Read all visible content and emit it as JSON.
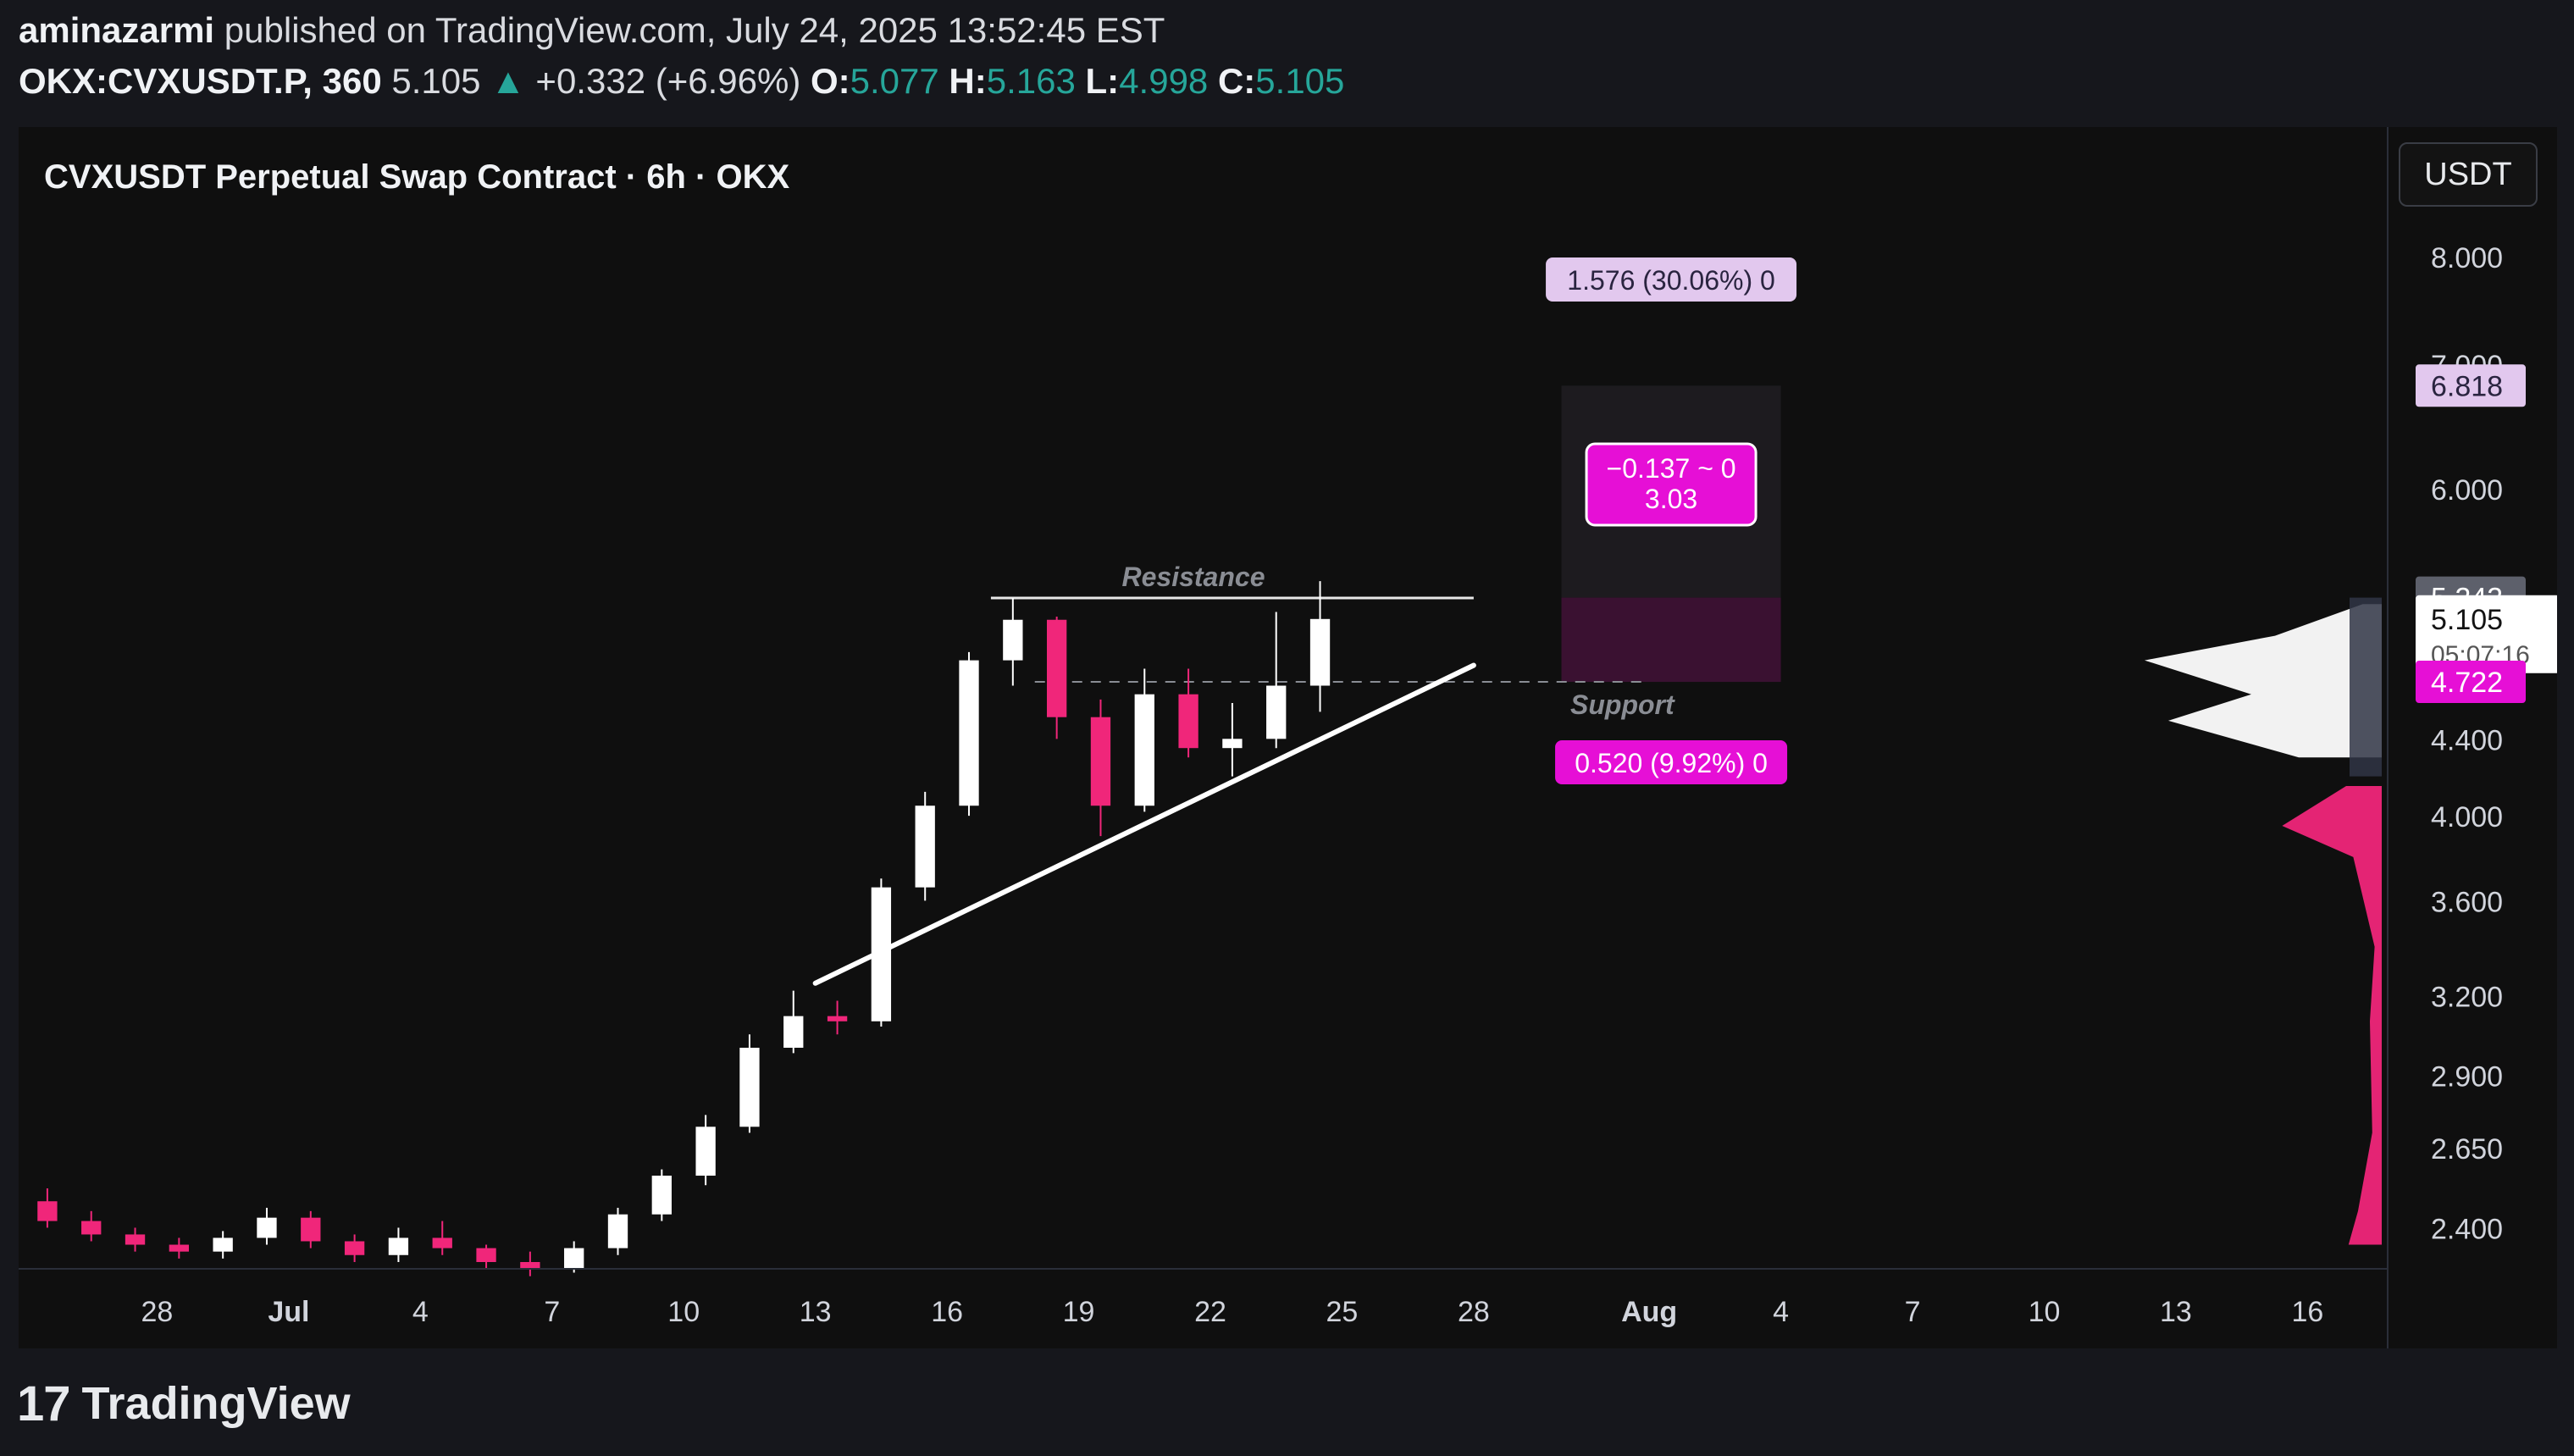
{
  "header": {
    "author": "aminazarmi",
    "published_text": "published on TradingView.com, July 24, 2025 13:52:45 EST",
    "symbol": "OKX:CVXUSDT.P, 360",
    "last": "5.105",
    "change_arrow": "▲",
    "change": "+0.332 (+6.96%)",
    "open_label": "O:",
    "open": "5.077",
    "high_label": "H:",
    "high": "5.163",
    "low_label": "L:",
    "low": "4.998",
    "close_label": "C:",
    "close": "5.105"
  },
  "currency_button": "USDT",
  "footer": {
    "logo": "17",
    "brand": "TradingView"
  },
  "colors": {
    "bull": "#ffffff",
    "bear": "#f0267a",
    "magenta": "#e60fd6",
    "lavender": "#e2c8ee",
    "grid_text": "#d1d4dc",
    "up_text": "#26a69a"
  },
  "chart_data": {
    "type": "candlestick",
    "title": "CVXUSDT Perpetual Swap Contract · 6h · OKX",
    "y_axis": {
      "scale": "log",
      "ticks": [
        "8.000",
        "7.000",
        "6.000",
        "4.400",
        "4.000",
        "3.600",
        "3.200",
        "2.900",
        "2.650",
        "2.400"
      ],
      "ylim": [
        2.3,
        8.3
      ]
    },
    "x_axis": {
      "ticks": [
        "28",
        "Jul",
        "4",
        "7",
        "10",
        "13",
        "16",
        "19",
        "22",
        "25",
        "28",
        "Aug",
        "4",
        "7",
        "10",
        "13",
        "16"
      ],
      "range": [
        "2025-06-25",
        "2025-08-18"
      ]
    },
    "price_labels": [
      {
        "text": "6.818",
        "value": 6.818,
        "style": "lavender"
      },
      {
        "text": "5.242",
        "value": 5.242,
        "style": "gray"
      },
      {
        "text": "5.105",
        "value": 5.105,
        "sub": "05:07:16",
        "style": "white"
      },
      {
        "text": "4.722",
        "value": 4.722,
        "style": "magenta"
      }
    ],
    "drawings": {
      "resistance_label": "Resistance",
      "resistance_price": 5.24,
      "support_label": "Support",
      "support_price": 4.722,
      "trendline": {
        "from": [
          "2025-07-13",
          3.25
        ],
        "to": [
          "2025-07-28",
          4.82
        ]
      }
    },
    "position_tool": {
      "target_label": "1.576 (30.06%) 0",
      "target_price": 6.818,
      "entry_price": 5.242,
      "stop_price": 4.722,
      "stop_label": "0.520 (9.92%) 0",
      "center_line1": "−0.137 ~ 0",
      "center_line2": "3.03",
      "from": "2025-07-30",
      "to": "2025-08-04"
    },
    "ohlc": [
      {
        "t": "2025-06-25",
        "o": 2.48,
        "h": 2.52,
        "l": 2.4,
        "c": 2.42
      },
      {
        "t": "2025-06-26",
        "o": 2.42,
        "h": 2.45,
        "l": 2.36,
        "c": 2.38
      },
      {
        "t": "2025-06-27",
        "o": 2.38,
        "h": 2.4,
        "l": 2.33,
        "c": 2.35
      },
      {
        "t": "2025-06-28",
        "o": 2.35,
        "h": 2.37,
        "l": 2.31,
        "c": 2.33
      },
      {
        "t": "2025-06-29",
        "o": 2.33,
        "h": 2.39,
        "l": 2.31,
        "c": 2.37
      },
      {
        "t": "2025-06-30",
        "o": 2.37,
        "h": 2.46,
        "l": 2.35,
        "c": 2.43
      },
      {
        "t": "2025-07-01",
        "o": 2.43,
        "h": 2.45,
        "l": 2.34,
        "c": 2.36
      },
      {
        "t": "2025-07-02",
        "o": 2.36,
        "h": 2.38,
        "l": 2.3,
        "c": 2.32
      },
      {
        "t": "2025-07-03",
        "o": 2.32,
        "h": 2.4,
        "l": 2.3,
        "c": 2.37
      },
      {
        "t": "2025-07-04",
        "o": 2.37,
        "h": 2.42,
        "l": 2.32,
        "c": 2.34
      },
      {
        "t": "2025-07-05",
        "o": 2.34,
        "h": 2.35,
        "l": 2.28,
        "c": 2.3
      },
      {
        "t": "2025-07-06",
        "o": 2.3,
        "h": 2.33,
        "l": 2.26,
        "c": 2.28
      },
      {
        "t": "2025-07-07",
        "o": 2.28,
        "h": 2.36,
        "l": 2.27,
        "c": 2.34
      },
      {
        "t": "2025-07-08",
        "o": 2.34,
        "h": 2.46,
        "l": 2.32,
        "c": 2.44
      },
      {
        "t": "2025-07-09",
        "o": 2.44,
        "h": 2.58,
        "l": 2.42,
        "c": 2.56
      },
      {
        "t": "2025-07-10",
        "o": 2.56,
        "h": 2.76,
        "l": 2.53,
        "c": 2.72
      },
      {
        "t": "2025-07-11",
        "o": 2.72,
        "h": 3.05,
        "l": 2.7,
        "c": 3.0
      },
      {
        "t": "2025-07-12",
        "o": 3.0,
        "h": 3.22,
        "l": 2.98,
        "c": 3.12
      },
      {
        "t": "2025-07-13",
        "o": 3.12,
        "h": 3.18,
        "l": 3.05,
        "c": 3.1
      },
      {
        "t": "2025-07-14",
        "o": 3.1,
        "h": 3.7,
        "l": 3.08,
        "c": 3.66
      },
      {
        "t": "2025-07-15",
        "o": 3.66,
        "h": 4.12,
        "l": 3.6,
        "c": 4.05
      },
      {
        "t": "2025-07-16",
        "o": 4.05,
        "h": 4.9,
        "l": 4.0,
        "c": 4.85
      },
      {
        "t": "2025-07-17",
        "o": 4.85,
        "h": 5.24,
        "l": 4.7,
        "c": 5.1
      },
      {
        "t": "2025-07-18",
        "o": 5.1,
        "h": 5.12,
        "l": 4.4,
        "c": 4.52
      },
      {
        "t": "2025-07-19",
        "o": 4.52,
        "h": 4.62,
        "l": 3.9,
        "c": 4.05
      },
      {
        "t": "2025-07-20",
        "o": 4.05,
        "h": 4.8,
        "l": 4.02,
        "c": 4.65
      },
      {
        "t": "2025-07-21",
        "o": 4.65,
        "h": 4.8,
        "l": 4.3,
        "c": 4.35
      },
      {
        "t": "2025-07-22",
        "o": 4.35,
        "h": 4.6,
        "l": 4.2,
        "c": 4.4
      },
      {
        "t": "2025-07-23",
        "o": 4.4,
        "h": 5.15,
        "l": 4.35,
        "c": 4.7
      },
      {
        "t": "2025-07-24",
        "o": 4.7,
        "h": 5.35,
        "l": 4.55,
        "c": 5.105
      }
    ],
    "volume_profile": {
      "poc_price": 4.6,
      "nodes": [
        {
          "price": 5.2,
          "vol": 0.08,
          "side": "up"
        },
        {
          "price": 5.0,
          "vol": 0.45,
          "side": "up"
        },
        {
          "price": 4.85,
          "vol": 1.0,
          "side": "up"
        },
        {
          "price": 4.65,
          "vol": 0.55,
          "side": "up"
        },
        {
          "price": 4.5,
          "vol": 0.9,
          "side": "up"
        },
        {
          "price": 4.3,
          "vol": 0.35,
          "side": "up"
        },
        {
          "price": 4.15,
          "vol": 0.15,
          "side": "down"
        },
        {
          "price": 3.95,
          "vol": 0.42,
          "side": "down"
        },
        {
          "price": 3.8,
          "vol": 0.12,
          "side": "down"
        },
        {
          "price": 3.4,
          "vol": 0.03,
          "side": "down"
        },
        {
          "price": 3.1,
          "vol": 0.05,
          "side": "down"
        },
        {
          "price": 2.7,
          "vol": 0.04,
          "side": "down"
        },
        {
          "price": 2.45,
          "vol": 0.1,
          "side": "down"
        },
        {
          "price": 2.35,
          "vol": 0.14,
          "side": "down"
        }
      ]
    }
  }
}
